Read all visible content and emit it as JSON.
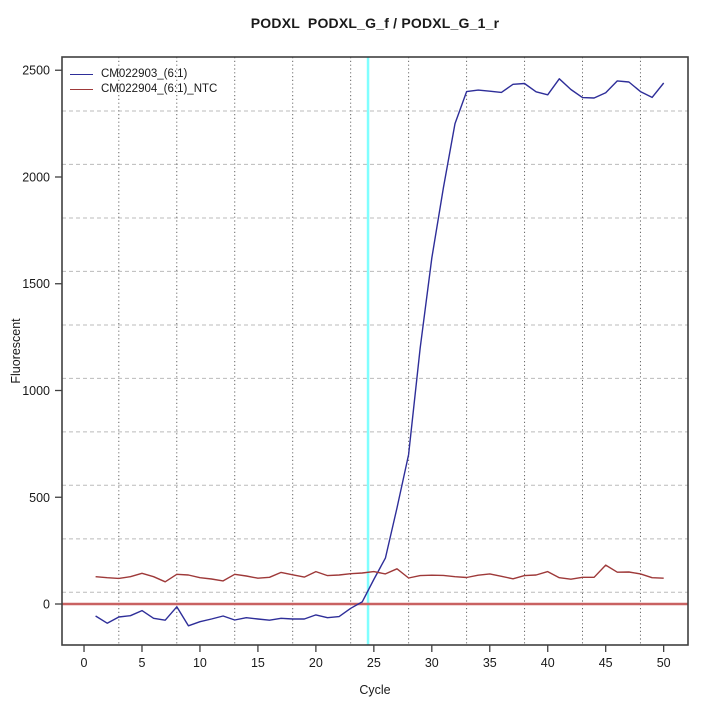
{
  "window": {
    "kind": "qPCR amplification plot"
  },
  "chart_data": {
    "type": "line",
    "title": "PODXL  PODXL_G_f / PODXL_G_1_r",
    "xlabel": "Cycle",
    "ylabel": "Fluorescent",
    "x_start_cycle": 1,
    "xlim": [
      -1.9,
      52.1
    ],
    "ylim": [
      -192,
      2562
    ],
    "x_ticks": [
      0,
      5,
      10,
      15,
      20,
      25,
      30,
      35,
      40,
      45,
      50
    ],
    "y_ticks": [
      0,
      500,
      1000,
      1500,
      2000,
      2500
    ],
    "grid_vertical_cycles": [
      3,
      8,
      13,
      18,
      23,
      28,
      33,
      38,
      43,
      48
    ],
    "grid_horizontal_values": [
      55,
      305,
      556,
      806,
      1057,
      1307,
      1558,
      1808,
      2059,
      2309
    ],
    "threshold_cycle_line_x": 24.5,
    "baseline_y": 0,
    "legend_position": "top-left",
    "series": [
      {
        "name": "CM022903_(6:1)",
        "color": "#2E2E99",
        "values": [
          -56,
          -90,
          -61,
          -55,
          -31,
          -67,
          -76,
          -13,
          -102,
          -83,
          -70,
          -56,
          -75,
          -64,
          -70,
          -76,
          -67,
          -70,
          -70,
          -51,
          -64,
          -59,
          -20,
          10,
          115,
          215,
          450,
          700,
          1200,
          1620,
          1950,
          2250,
          2400,
          2407,
          2402,
          2396,
          2434,
          2438,
          2399,
          2385,
          2460,
          2410,
          2372,
          2370,
          2395,
          2450,
          2445,
          2400,
          2373,
          2440
        ]
      },
      {
        "name": "CM022904_(6:1)_NTC",
        "color": "#9E3939",
        "values": [
          128,
          123,
          120,
          128,
          144,
          128,
          104,
          139,
          136,
          123,
          117,
          108,
          139,
          131,
          121,
          125,
          148,
          137,
          126,
          152,
          133,
          136,
          142,
          145,
          152,
          141,
          165,
          122,
          133,
          135,
          134,
          128,
          124,
          135,
          141,
          130,
          118,
          133,
          136,
          152,
          123,
          116,
          125,
          125,
          182,
          149,
          150,
          141,
          123,
          121
        ]
      }
    ],
    "colors": {
      "threshold_line": "#80FFFF",
      "baseline": "#C96262",
      "grid_horizontal": "#BBBBBB",
      "grid_vertical": "#666666",
      "box": "#404040",
      "tick_text": "#1A1A1A"
    }
  }
}
